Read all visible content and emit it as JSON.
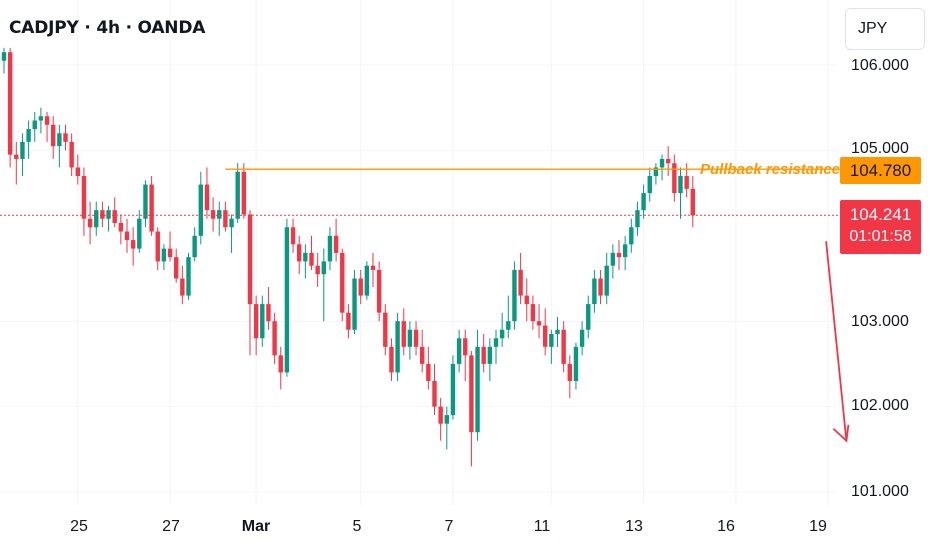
{
  "header": {
    "title": "CADJPY · 4h · OANDA",
    "currency": "JPY"
  },
  "colors": {
    "up": "#089981",
    "down": "#f23645",
    "level": "#ff9800",
    "arrow": "#f23645"
  },
  "chart_data": {
    "type": "candlestick",
    "symbol": "CADJPY",
    "timeframe": "4h",
    "ylim": [
      100.8,
      106.6
    ],
    "yticks": [
      "106.000",
      "105.000",
      "103.000",
      "102.000",
      "101.000"
    ],
    "ytick_values": [
      106.0,
      105.0,
      103.0,
      102.0,
      101.0
    ],
    "xticks": [
      "25",
      "27",
      "Mar",
      "5",
      "7",
      "11",
      "13",
      "16",
      "19"
    ],
    "xtick_index": [
      12,
      27,
      41,
      58,
      73,
      89,
      104,
      119,
      134
    ],
    "level": {
      "label": "Pullback resistance",
      "value": 104.78,
      "value_label": "104.780",
      "from_index": 36
    },
    "last": {
      "value": 104.241,
      "value_label": "104.241",
      "countdown": "01:01:58"
    },
    "projection": {
      "from_index": 134,
      "from_value": 104.1,
      "to_index": 136,
      "to_value": 101.6
    },
    "candles": [
      [
        106.05,
        106.2,
        105.9,
        106.15
      ],
      [
        106.15,
        106.2,
        104.8,
        104.95
      ],
      [
        104.95,
        105.1,
        104.6,
        104.9
      ],
      [
        104.9,
        105.2,
        104.7,
        105.1
      ],
      [
        105.1,
        105.35,
        104.9,
        105.25
      ],
      [
        105.25,
        105.45,
        105.1,
        105.35
      ],
      [
        105.35,
        105.5,
        105.2,
        105.4
      ],
      [
        105.4,
        105.45,
        105.1,
        105.3
      ],
      [
        105.3,
        105.4,
        104.9,
        105.05
      ],
      [
        105.05,
        105.3,
        104.8,
        105.2
      ],
      [
        105.2,
        105.3,
        105.0,
        105.1
      ],
      [
        105.1,
        105.2,
        104.7,
        104.8
      ],
      [
        104.8,
        104.95,
        104.6,
        104.7
      ],
      [
        104.7,
        104.8,
        104.0,
        104.2
      ],
      [
        104.2,
        104.4,
        103.9,
        104.1
      ],
      [
        104.1,
        104.4,
        104.0,
        104.3
      ],
      [
        104.3,
        104.4,
        104.1,
        104.2
      ],
      [
        104.2,
        104.35,
        104.05,
        104.3
      ],
      [
        104.3,
        104.45,
        104.1,
        104.15
      ],
      [
        104.15,
        104.25,
        103.9,
        104.05
      ],
      [
        104.05,
        104.2,
        103.8,
        103.95
      ],
      [
        103.95,
        104.1,
        103.65,
        103.85
      ],
      [
        103.85,
        104.3,
        103.8,
        104.2
      ],
      [
        104.2,
        104.65,
        104.1,
        104.6
      ],
      [
        104.6,
        104.7,
        104.0,
        104.05
      ],
      [
        104.05,
        104.1,
        103.6,
        103.7
      ],
      [
        103.7,
        103.9,
        103.6,
        103.85
      ],
      [
        103.85,
        104.05,
        103.7,
        103.75
      ],
      [
        103.75,
        103.85,
        103.45,
        103.5
      ],
      [
        103.5,
        103.65,
        103.2,
        103.3
      ],
      [
        103.3,
        103.8,
        103.25,
        103.75
      ],
      [
        103.75,
        104.1,
        103.7,
        104.0
      ],
      [
        104.0,
        104.75,
        103.9,
        104.6
      ],
      [
        104.6,
        104.8,
        104.2,
        104.3
      ],
      [
        104.3,
        104.45,
        104.05,
        104.2
      ],
      [
        104.2,
        104.4,
        104.0,
        104.3
      ],
      [
        104.3,
        104.4,
        104.05,
        104.1
      ],
      [
        104.1,
        104.25,
        103.8,
        104.2
      ],
      [
        104.2,
        104.85,
        104.15,
        104.75
      ],
      [
        104.75,
        104.85,
        104.2,
        104.25
      ],
      [
        104.25,
        104.3,
        102.6,
        103.2
      ],
      [
        103.2,
        103.3,
        102.6,
        102.8
      ],
      [
        102.8,
        103.3,
        102.7,
        103.2
      ],
      [
        103.2,
        103.4,
        102.9,
        103.0
      ],
      [
        103.0,
        103.1,
        102.5,
        102.6
      ],
      [
        102.6,
        102.7,
        102.2,
        102.4
      ],
      [
        102.4,
        104.2,
        102.35,
        104.1
      ],
      [
        104.1,
        104.2,
        103.8,
        103.9
      ],
      [
        103.9,
        104.0,
        103.55,
        103.7
      ],
      [
        103.7,
        103.9,
        103.5,
        103.8
      ],
      [
        103.8,
        104.0,
        103.6,
        103.65
      ],
      [
        103.65,
        103.8,
        103.4,
        103.55
      ],
      [
        103.55,
        103.85,
        103.0,
        103.7
      ],
      [
        103.7,
        104.1,
        103.6,
        104.0
      ],
      [
        104.0,
        104.2,
        103.7,
        103.8
      ],
      [
        103.8,
        103.85,
        103.0,
        103.1
      ],
      [
        103.1,
        103.2,
        102.8,
        102.9
      ],
      [
        102.9,
        103.6,
        102.85,
        103.5
      ],
      [
        103.5,
        103.6,
        103.2,
        103.3
      ],
      [
        103.3,
        103.7,
        103.25,
        103.65
      ],
      [
        103.65,
        103.8,
        103.4,
        103.6
      ],
      [
        103.6,
        103.7,
        103.0,
        103.1
      ],
      [
        103.1,
        103.2,
        102.6,
        102.7
      ],
      [
        102.7,
        102.8,
        102.3,
        102.4
      ],
      [
        102.4,
        103.1,
        102.3,
        103.0
      ],
      [
        103.0,
        103.15,
        102.6,
        102.7
      ],
      [
        102.7,
        103.0,
        102.55,
        102.9
      ],
      [
        102.9,
        103.0,
        102.6,
        102.7
      ],
      [
        102.7,
        102.9,
        102.4,
        102.5
      ],
      [
        102.5,
        102.7,
        102.2,
        102.3
      ],
      [
        102.3,
        102.5,
        101.9,
        102.0
      ],
      [
        102.0,
        102.1,
        101.6,
        101.8
      ],
      [
        101.8,
        102.0,
        101.5,
        101.9
      ],
      [
        101.9,
        102.6,
        101.85,
        102.5
      ],
      [
        102.5,
        102.9,
        102.4,
        102.8
      ],
      [
        102.8,
        102.9,
        102.3,
        102.6
      ],
      [
        102.6,
        102.65,
        101.3,
        101.7
      ],
      [
        101.7,
        102.9,
        101.6,
        102.7
      ],
      [
        102.7,
        102.85,
        102.4,
        102.5
      ],
      [
        102.5,
        102.8,
        102.3,
        102.7
      ],
      [
        102.7,
        102.9,
        102.5,
        102.8
      ],
      [
        102.8,
        103.1,
        102.7,
        102.9
      ],
      [
        102.9,
        103.3,
        102.8,
        103.0
      ],
      [
        103.0,
        103.7,
        102.9,
        103.6
      ],
      [
        103.6,
        103.8,
        103.2,
        103.3
      ],
      [
        103.3,
        103.5,
        103.0,
        103.2
      ],
      [
        103.2,
        103.3,
        102.9,
        103.0
      ],
      [
        103.0,
        103.2,
        102.8,
        102.95
      ],
      [
        102.95,
        103.15,
        102.6,
        102.7
      ],
      [
        102.7,
        102.9,
        102.5,
        102.85
      ],
      [
        102.85,
        103.05,
        102.7,
        102.9
      ],
      [
        102.9,
        103.0,
        102.4,
        102.5
      ],
      [
        102.5,
        102.6,
        102.1,
        102.3
      ],
      [
        102.3,
        102.75,
        102.2,
        102.7
      ],
      [
        102.7,
        103.0,
        102.6,
        102.9
      ],
      [
        102.9,
        103.3,
        102.8,
        103.2
      ],
      [
        103.2,
        103.6,
        103.1,
        103.5
      ],
      [
        103.5,
        103.6,
        103.2,
        103.3
      ],
      [
        103.3,
        103.8,
        103.2,
        103.65
      ],
      [
        103.65,
        103.9,
        103.5,
        103.8
      ],
      [
        103.8,
        103.95,
        103.6,
        103.75
      ],
      [
        103.75,
        104.0,
        103.6,
        103.9
      ],
      [
        103.9,
        104.2,
        103.8,
        104.1
      ],
      [
        104.1,
        104.4,
        104.0,
        104.3
      ],
      [
        104.3,
        104.6,
        104.2,
        104.5
      ],
      [
        104.5,
        104.8,
        104.4,
        104.7
      ],
      [
        104.7,
        104.85,
        104.6,
        104.8
      ],
      [
        104.8,
        104.95,
        104.65,
        104.9
      ],
      [
        104.9,
        105.05,
        104.7,
        104.85
      ],
      [
        104.85,
        104.95,
        104.4,
        104.5
      ],
      [
        104.5,
        104.8,
        104.2,
        104.7
      ],
      [
        104.7,
        104.85,
        104.45,
        104.55
      ],
      [
        104.55,
        104.7,
        104.1,
        104.24
      ]
    ]
  }
}
